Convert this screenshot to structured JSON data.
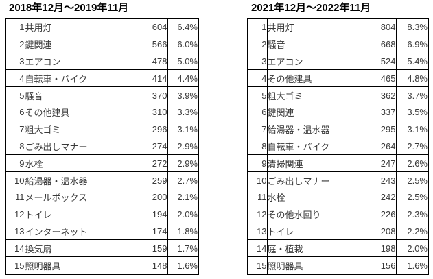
{
  "page": {
    "background_color": "#ffffff",
    "highlight_color": "#ffff00",
    "border_color": "#000000",
    "text_color": "#3a3a3a"
  },
  "chart_data": [
    {
      "type": "table",
      "title": "2018年12月～2019年11月",
      "columns": [
        "rank",
        "item",
        "count",
        "percent"
      ],
      "highlighted_rank": 5,
      "rows": [
        [
          1,
          "共用灯",
          604,
          "6.4%"
        ],
        [
          2,
          "鍵関連",
          566,
          "6.0%"
        ],
        [
          3,
          "エアコン",
          478,
          "5.0%"
        ],
        [
          4,
          "自転車・バイク",
          414,
          "4.4%"
        ],
        [
          5,
          "騒音",
          370,
          "3.9%"
        ],
        [
          6,
          "その他建具",
          310,
          "3.3%"
        ],
        [
          7,
          "粗大ゴミ",
          296,
          "3.1%"
        ],
        [
          8,
          "ごみ出しマナー",
          274,
          "2.9%"
        ],
        [
          9,
          "水栓",
          272,
          "2.9%"
        ],
        [
          10,
          "給湯器・温水器",
          259,
          "2.7%"
        ],
        [
          11,
          "メールボックス",
          200,
          "2.1%"
        ],
        [
          12,
          "トイレ",
          194,
          "2.0%"
        ],
        [
          13,
          "インターネット",
          174,
          "1.8%"
        ],
        [
          14,
          "換気扇",
          159,
          "1.7%"
        ],
        [
          15,
          "照明器具",
          148,
          "1.6%"
        ]
      ]
    },
    {
      "type": "table",
      "title": "2021年12月～2022年11月",
      "columns": [
        "rank",
        "item",
        "count",
        "percent"
      ],
      "highlighted_rank": 2,
      "rows": [
        [
          1,
          "共用灯",
          804,
          "8.3%"
        ],
        [
          2,
          "騒音",
          668,
          "6.9%"
        ],
        [
          3,
          "エアコン",
          524,
          "5.4%"
        ],
        [
          4,
          "その他建具",
          465,
          "4.8%"
        ],
        [
          5,
          "粗大ゴミ",
          362,
          "3.7%"
        ],
        [
          6,
          "鍵関連",
          337,
          "3.5%"
        ],
        [
          7,
          "給湯器・温水器",
          295,
          "3.1%"
        ],
        [
          8,
          "自転車・バイク",
          264,
          "2.7%"
        ],
        [
          9,
          "清掃関連",
          247,
          "2.6%"
        ],
        [
          10,
          "ごみ出しマナー",
          243,
          "2.5%"
        ],
        [
          11,
          "水栓",
          242,
          "2.5%"
        ],
        [
          12,
          "その他水回り",
          226,
          "2.3%"
        ],
        [
          13,
          "トイレ",
          208,
          "2.2%"
        ],
        [
          14,
          "庭・植栽",
          198,
          "2.0%"
        ],
        [
          15,
          "照明器具",
          156,
          "1.6%"
        ]
      ]
    }
  ]
}
